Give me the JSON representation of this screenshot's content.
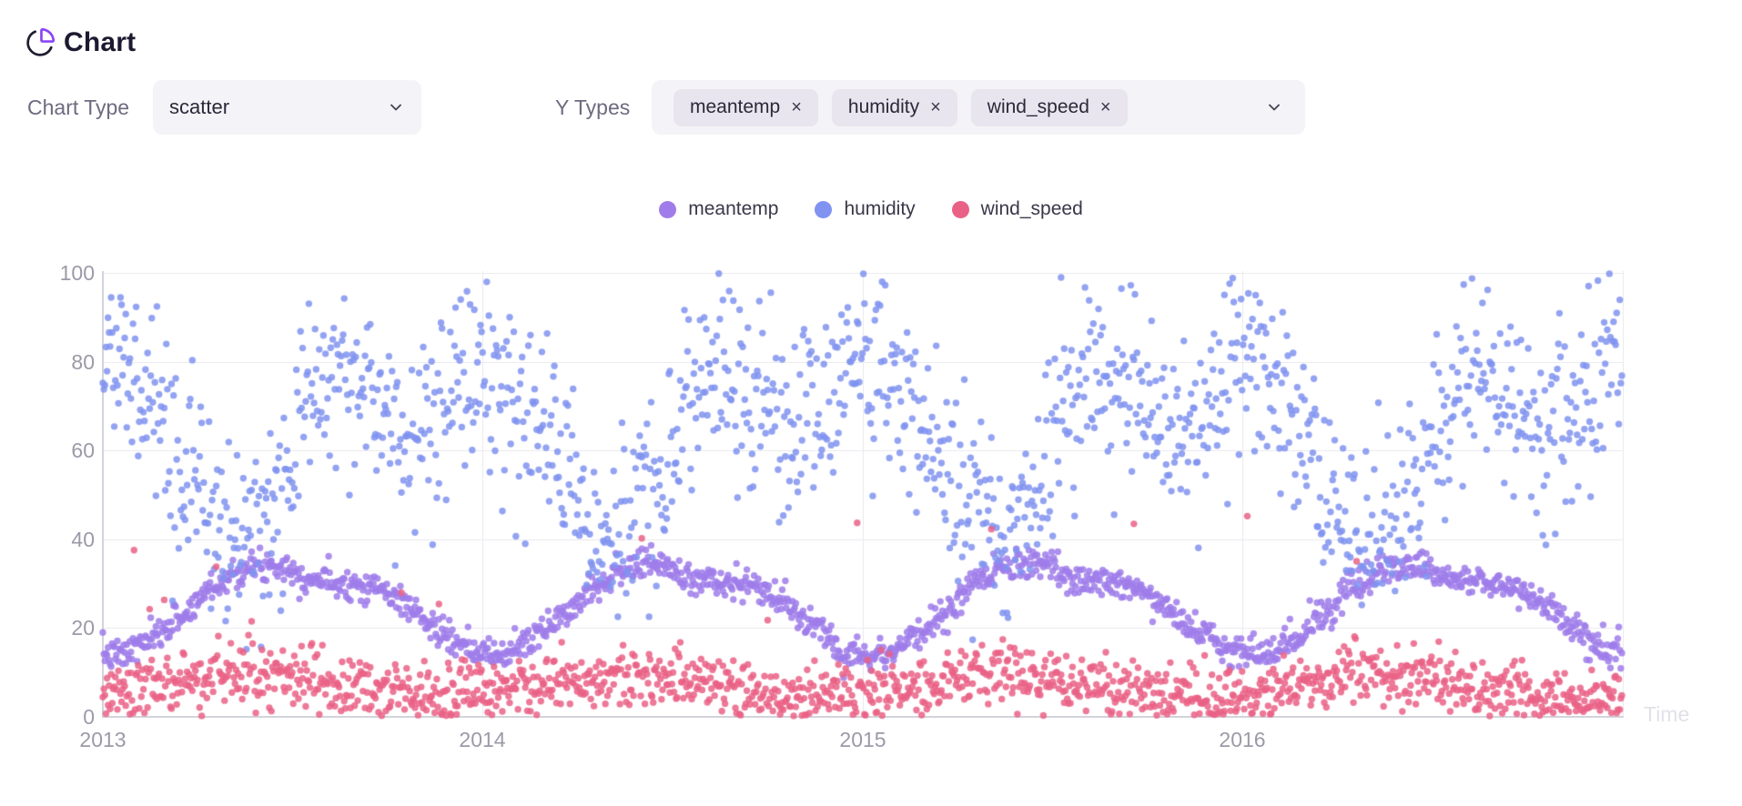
{
  "header": {
    "title": "Chart"
  },
  "controls": {
    "chart_type_label": "Chart Type",
    "chart_type_value": "scatter",
    "y_types_label": "Y Types",
    "y_type_tags": [
      {
        "label": "meantemp",
        "remove_label": "×"
      },
      {
        "label": "humidity",
        "remove_label": "×"
      },
      {
        "label": "wind_speed",
        "remove_label": "×"
      }
    ]
  },
  "icons": {
    "title_icon": "pie-chart",
    "title_icon_accent": "#8b45f7",
    "title_icon_stroke": "#211d30",
    "chevron": "chevron-down"
  },
  "chart_data": {
    "type": "scatter",
    "title": "",
    "xlabel": "Time",
    "ylabel": "",
    "x_range": [
      "2013-01-01",
      "2017-01-01"
    ],
    "x_ticks": [
      "2013",
      "2014",
      "2015",
      "2016"
    ],
    "ylim": [
      0,
      100
    ],
    "y_ticks": [
      0,
      20,
      40,
      60,
      80,
      100
    ],
    "grid": true,
    "legend_position": "top",
    "sampling": "daily",
    "points_per_series": 1461,
    "seed": 7,
    "point_radius": 3.7,
    "point_opacity": 0.85,
    "series": [
      {
        "name": "meantemp",
        "color": "#9f7cea",
        "monthly_means": [
          13.8,
          17.2,
          22.8,
          29.5,
          33.5,
          34.5,
          31.3,
          30.3,
          29.5,
          25.8,
          19.8,
          14.8
        ],
        "noise_sd": 1.7,
        "clamp": [
          6,
          39
        ]
      },
      {
        "name": "humidity",
        "color": "#8093f0",
        "monthly_means": [
          79,
          69,
          57,
          43,
          41,
          50,
          72,
          78,
          74,
          64,
          69,
          79
        ],
        "noise_sd": 10.5,
        "clamp": [
          13,
          100
        ]
      },
      {
        "name": "wind_speed",
        "color": "#ea6186",
        "monthly_means": [
          5.5,
          7.2,
          8.2,
          9.0,
          9.6,
          9.2,
          7.8,
          6.6,
          5.8,
          4.4,
          4.2,
          5.0
        ],
        "noise_sd": 3.4,
        "clamp": [
          0.2,
          46
        ],
        "spike_prob": 0.005,
        "spike_max": 42
      }
    ]
  }
}
